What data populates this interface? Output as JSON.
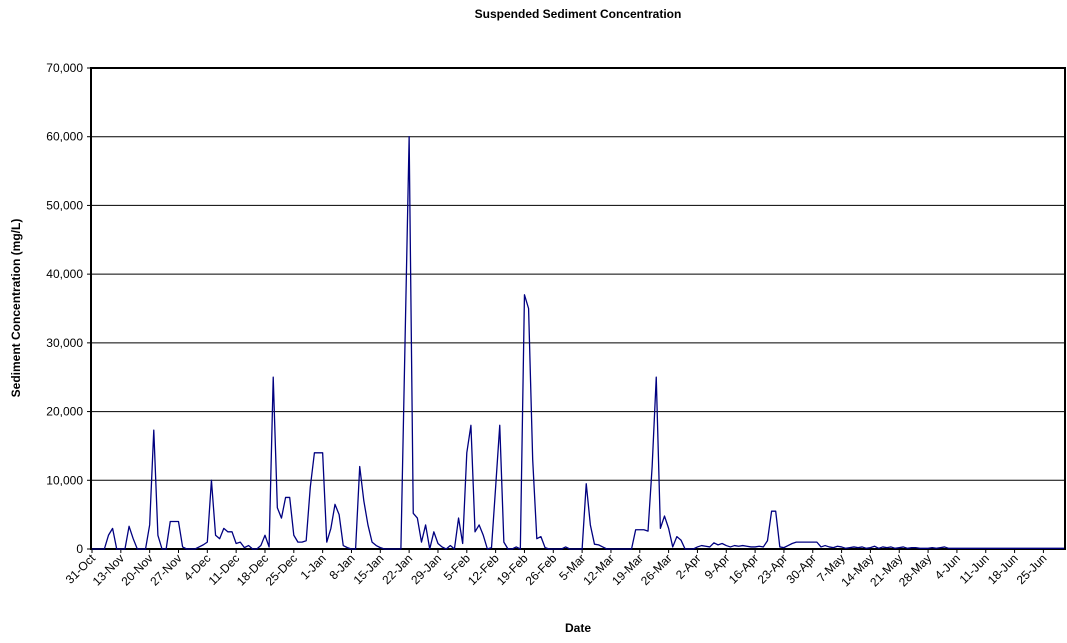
{
  "chart_data": {
    "type": "line",
    "title": "Suspended Sediment Concentration",
    "x_label": "Date",
    "y_label": "Sediment Concentration (mg/L)",
    "color": "#000080",
    "grid": true,
    "ylim": [
      0,
      70000
    ],
    "yticks": [
      0,
      {
        "value": 10000,
        "label": "10,000"
      },
      {
        "value": 20000,
        "label": "20,000"
      },
      {
        "value": 30000,
        "label": "30,000"
      },
      {
        "value": 40000,
        "label": "40,000"
      },
      {
        "value": 50000,
        "label": "50,000"
      },
      {
        "value": 60000,
        "label": "60,000"
      },
      {
        "value": 70000,
        "label": "70,000"
      }
    ],
    "categories": [
      "31-Oct",
      null,
      null,
      null,
      null,
      null,
      null,
      "13-Nov",
      null,
      null,
      null,
      null,
      null,
      null,
      "20-Nov",
      null,
      null,
      null,
      null,
      null,
      null,
      "27-Nov",
      null,
      null,
      null,
      null,
      null,
      null,
      "4-Dec",
      null,
      null,
      null,
      null,
      null,
      null,
      "11-Dec",
      null,
      null,
      null,
      null,
      null,
      null,
      "18-Dec",
      null,
      null,
      null,
      null,
      null,
      null,
      "25-Dec",
      null,
      null,
      null,
      null,
      null,
      null,
      "1-Jan",
      null,
      null,
      null,
      null,
      null,
      null,
      "8-Jan",
      null,
      null,
      null,
      null,
      null,
      null,
      "15-Jan",
      null,
      null,
      null,
      null,
      null,
      null,
      "22-Jan",
      null,
      null,
      null,
      null,
      null,
      null,
      "29-Jan",
      null,
      null,
      null,
      null,
      null,
      null,
      "5-Feb",
      null,
      null,
      null,
      null,
      null,
      null,
      "12-Feb",
      null,
      null,
      null,
      null,
      null,
      null,
      "19-Feb",
      null,
      null,
      null,
      null,
      null,
      null,
      "26-Feb",
      null,
      null,
      null,
      null,
      null,
      null,
      "5-Mar",
      null,
      null,
      null,
      null,
      null,
      null,
      "12-Mar",
      null,
      null,
      null,
      null,
      null,
      null,
      "19-Mar",
      null,
      null,
      null,
      null,
      null,
      null,
      "26-Mar",
      null,
      null,
      null,
      null,
      null,
      null,
      "2-Apr",
      null,
      null,
      null,
      null,
      null,
      null,
      "9-Apr",
      null,
      null,
      null,
      null,
      null,
      null,
      "16-Apr",
      null,
      null,
      null,
      null,
      null,
      null,
      "23-Apr",
      null,
      null,
      null,
      null,
      null,
      null,
      "30-Apr",
      null,
      null,
      null,
      null,
      null,
      null,
      "7-May",
      null,
      null,
      null,
      null,
      null,
      null,
      "14-May",
      null,
      null,
      null,
      null,
      null,
      null,
      "21-May",
      null,
      null,
      null,
      null,
      null,
      null,
      "28-May",
      null,
      null,
      null,
      null,
      null,
      null,
      "4-Jun",
      null,
      null,
      null,
      null,
      null,
      null,
      "11-Jun",
      null,
      null,
      null,
      null,
      null,
      null,
      "18-Jun",
      null,
      null,
      null,
      null,
      null,
      null,
      "25-Jun",
      null,
      null,
      null,
      null,
      null
    ],
    "values": [
      0,
      0,
      0,
      0,
      2000,
      3000,
      0,
      0,
      0,
      3300,
      1500,
      0,
      0,
      0,
      3500,
      17300,
      2000,
      0,
      0,
      4000,
      4000,
      4000,
      300,
      0,
      0,
      0,
      300,
      600,
      1000,
      10000,
      2000,
      1500,
      3000,
      2500,
      2500,
      800,
      1000,
      200,
      500,
      0,
      0,
      500,
      2000,
      300,
      25000,
      6000,
      4500,
      7500,
      7500,
      2000,
      1000,
      1000,
      1200,
      9000,
      14000,
      14000,
      14000,
      1000,
      3000,
      6500,
      5000,
      500,
      200,
      0,
      0,
      12000,
      7000,
      3500,
      1000,
      500,
      200,
      0,
      0,
      0,
      0,
      0,
      30000,
      60000,
      5200,
      4500,
      1000,
      3500,
      0,
      2500,
      800,
      300,
      0,
      500,
      0,
      4500,
      800,
      14000,
      18000,
      2500,
      3500,
      2000,
      0,
      200,
      9000,
      18000,
      1000,
      0,
      0,
      300,
      0,
      37000,
      35000,
      13000,
      1500,
      1800,
      200,
      0,
      0,
      0,
      0,
      300,
      0,
      0,
      0,
      0,
      9500,
      3500,
      700,
      600,
      300,
      0,
      0,
      0,
      0,
      0,
      0,
      0,
      2800,
      2800,
      2800,
      2600,
      12000,
      25000,
      3000,
      4800,
      3000,
      300,
      1800,
      1300,
      0,
      0,
      0,
      300,
      500,
      400,
      300,
      900,
      600,
      800,
      500,
      300,
      500,
      400,
      500,
      400,
      300,
      300,
      400,
      300,
      1200,
      5500,
      5500,
      300,
      200,
      500,
      800,
      1000,
      1000,
      1000,
      1000,
      1000,
      1000,
      300,
      500,
      300,
      200,
      400,
      300,
      100,
      200,
      300,
      200,
      300,
      100,
      200,
      400,
      100,
      300,
      200,
      300,
      100,
      200,
      300,
      100,
      200,
      200,
      100,
      100,
      100,
      200,
      100,
      200,
      300,
      100,
      100,
      100,
      100,
      100,
      100,
      100,
      100,
      100,
      100,
      100,
      100,
      100,
      100,
      100,
      100,
      100,
      100,
      100,
      100,
      100,
      100,
      100,
      100,
      100,
      100,
      100,
      100,
      100
    ]
  }
}
